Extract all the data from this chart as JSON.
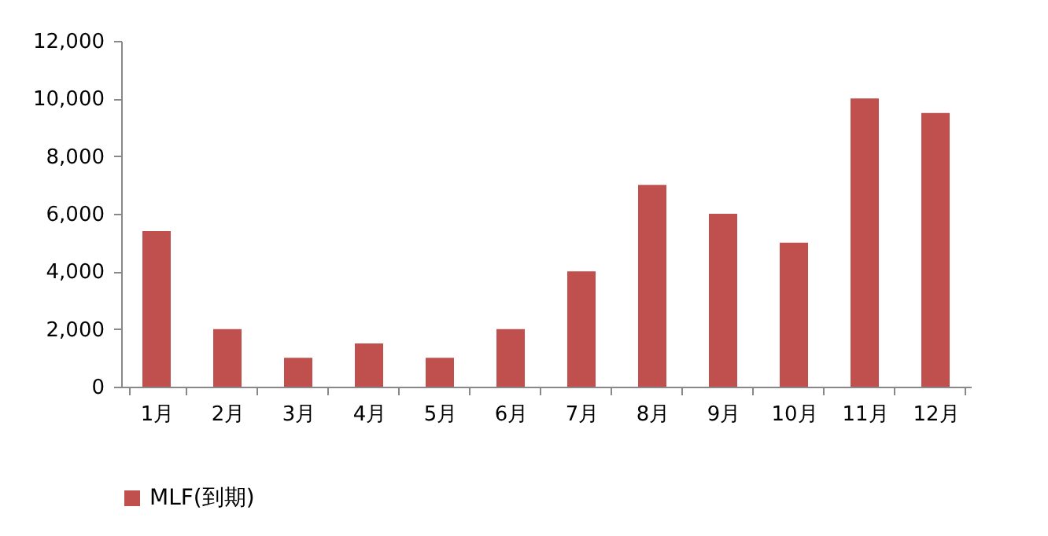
{
  "chart_data": {
    "type": "bar",
    "categories": [
      "1月",
      "2月",
      "3月",
      "4月",
      "5月",
      "6月",
      "7月",
      "8月",
      "9月",
      "10月",
      "11月",
      "12月"
    ],
    "series": [
      {
        "name": "MLF(到期)",
        "color": "#c0504d",
        "values": [
          5400,
          2000,
          1000,
          1500,
          1000,
          2000,
          4000,
          7000,
          6000,
          5000,
          10000,
          9500
        ]
      }
    ],
    "ylim": [
      0,
      12000
    ],
    "yticks": [
      0,
      {
        "value": 2000,
        "label": "2,000"
      },
      {
        "value": 4000,
        "label": "4,000"
      },
      {
        "value": 6000,
        "label": "6,000"
      },
      {
        "value": 8000,
        "label": "8,000"
      },
      {
        "value": 10000,
        "label": "10,000"
      },
      {
        "value": 12000,
        "label": "12,000"
      }
    ],
    "grid": false,
    "legend": "bottom"
  }
}
